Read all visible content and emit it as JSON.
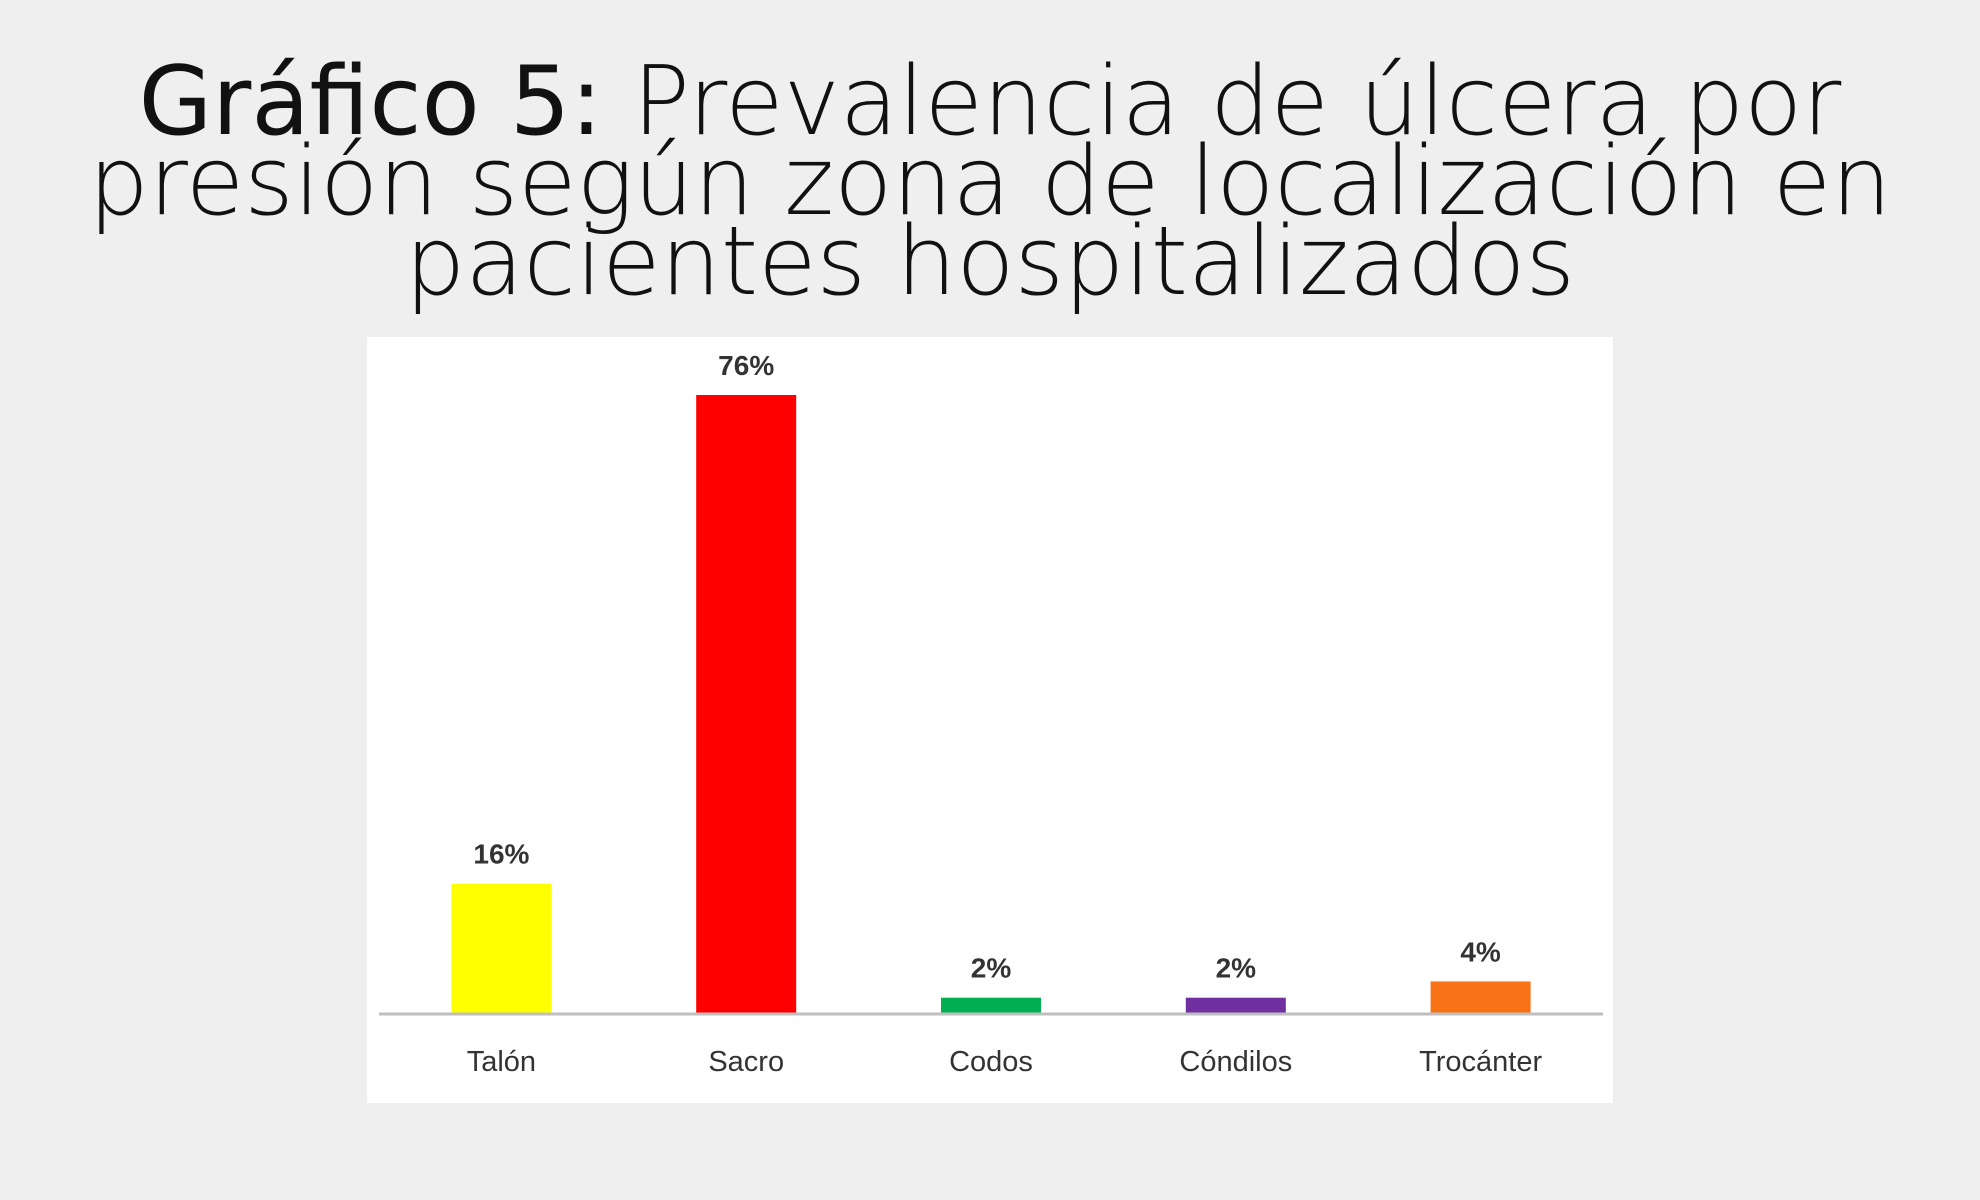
{
  "title": {
    "prefix": "Gráfico 5:",
    "text": "Prevalencia de úlcera por presión según zona de localización en pacientes hospitalizados"
  },
  "chart_data": {
    "type": "bar",
    "categories": [
      "Talón",
      "Sacro",
      "Codos",
      "Cóndilos",
      "Trocánter"
    ],
    "values": [
      16,
      76,
      2,
      2,
      4
    ],
    "value_labels": [
      "16%",
      "76%",
      "2%",
      "2%",
      "4%"
    ],
    "unit": "%",
    "colors": [
      "#ffff00",
      "#ff0000",
      "#00b050",
      "#7030a0",
      "#f97316"
    ],
    "ylim": [
      0,
      76
    ],
    "grid": false,
    "legend": "none"
  }
}
